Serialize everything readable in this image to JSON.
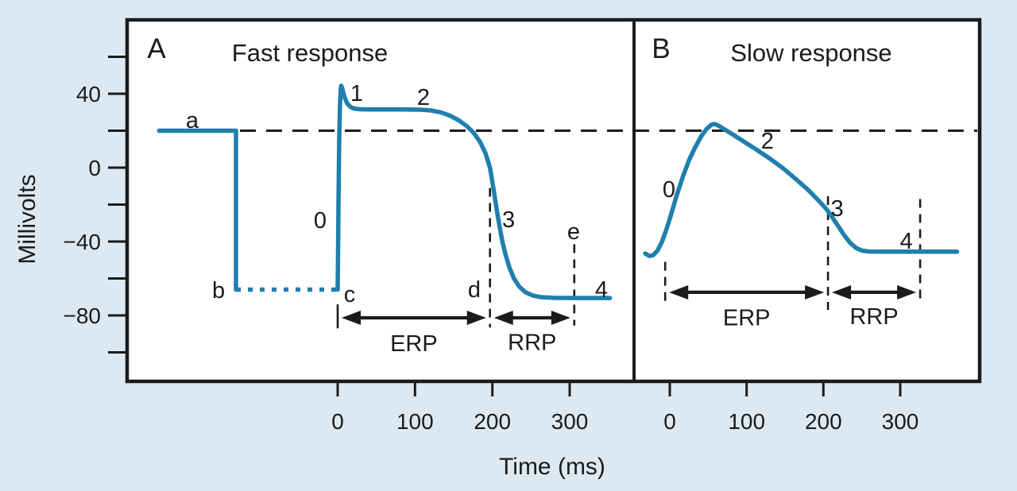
{
  "figure": {
    "colors": {
      "background": "#dde9f2",
      "plot_background": "#ffffff",
      "curve": "#1f7fad",
      "ink": "#1b1b1b"
    },
    "y_axis": {
      "label": "Millivolts",
      "labeled_ticks": [
        {
          "value": 40,
          "label": "40"
        },
        {
          "value": 0,
          "label": "0"
        },
        {
          "value": -40,
          "label": "−40"
        },
        {
          "value": -80,
          "label": "−80"
        }
      ],
      "all_tick_values": [
        60,
        40,
        20,
        0,
        -20,
        -40,
        -60,
        -80,
        -100
      ]
    },
    "x_axis": {
      "label": "Time (ms)",
      "tick_values": [
        0,
        100,
        200,
        300
      ]
    },
    "threshold_line_mv": 20
  },
  "chart_data": {
    "type": "line",
    "x_unit": "ms",
    "y_unit": "millivolts",
    "ylim": [
      -100,
      60
    ],
    "threshold_mv": 20,
    "panels": [
      {
        "id": "A",
        "panel_letter": "A",
        "title": "Fast response",
        "x_ticks": [
          0,
          100,
          200,
          300
        ],
        "segments": [
          {
            "name": "resting-trace-a-b",
            "style": "solid",
            "points": [
              [
                -231,
                20
              ],
              [
                -131.5,
                20
              ],
              [
                -131.5,
                -66
              ]
            ]
          },
          {
            "name": "impalement-dotted-b-c",
            "style": "dotted",
            "points": [
              [
                -131.5,
                -66
              ],
              [
                -1,
                -66
              ]
            ]
          },
          {
            "name": "action-potential",
            "style": "solid",
            "points": [
              [
                0,
                -66
              ],
              [
                0.5,
                -45
              ],
              [
                1,
                -20
              ],
              [
                2,
                14
              ],
              [
                3,
                34
              ],
              [
                4,
                43
              ],
              [
                4.5,
                44.3
              ],
              [
                5.5,
                43.5
              ],
              [
                7,
                41
              ],
              [
                9,
                38
              ],
              [
                12,
                35
              ],
              [
                16,
                33
              ],
              [
                21,
                32
              ],
              [
                28,
                31.6
              ],
              [
                40,
                31.5
              ],
              [
                60,
                31.5
              ],
              [
                85,
                31.5
              ],
              [
                105,
                31.4
              ],
              [
                120,
                31
              ],
              [
                133,
                30
              ],
              [
                145,
                28.2
              ],
              [
                157,
                25.5
              ],
              [
                167,
                22.5
              ],
              [
                176,
                18.8
              ],
              [
                184,
                14
              ],
              [
                191,
                8
              ],
              [
                197,
                0
              ],
              [
                201,
                -10
              ],
              [
                205,
                -21
              ],
              [
                209,
                -31
              ],
              [
                213,
                -40
              ],
              [
                217,
                -47
              ],
              [
                222,
                -54
              ],
              [
                228,
                -60
              ],
              [
                235,
                -64.5
              ],
              [
                243,
                -67.5
              ],
              [
                252,
                -69.2
              ],
              [
                263,
                -70.1
              ],
              [
                280,
                -70.5
              ],
              [
                310,
                -70.6
              ],
              [
                352,
                -70.6
              ]
            ]
          }
        ],
        "point_labels": [
          {
            "text": "a",
            "t": -188,
            "v": 25.8
          },
          {
            "text": "b",
            "t": -154,
            "v": -66.2
          },
          {
            "text": "c",
            "t": 15.4,
            "v": -68.4
          },
          {
            "text": "0",
            "t": -22.6,
            "v": -28.4
          },
          {
            "text": "1",
            "t": 24.7,
            "v": 40.4
          },
          {
            "text": "2",
            "t": 111,
            "v": 38.3
          },
          {
            "text": "3",
            "t": 221,
            "v": -28
          },
          {
            "text": "d",
            "t": 176.7,
            "v": -65.8
          },
          {
            "text": "e",
            "t": 305,
            "v": -34.4
          },
          {
            "text": "4",
            "t": 341,
            "v": -65.8
          }
        ],
        "guides": [
          {
            "t": 0,
            "v1": -74,
            "v2": -87,
            "style": "solid"
          },
          {
            "t": 197,
            "v1": -11,
            "v2": -86.5,
            "style": "dashed"
          },
          {
            "t": 306,
            "v1": -41.5,
            "v2": -85.5,
            "style": "dashed"
          }
        ],
        "intervals": [
          {
            "label": "ERP",
            "from_ms": 0,
            "to_ms": 197,
            "arrow_v": -81.3,
            "label_v": -95
          },
          {
            "label": "RRP",
            "from_ms": 197,
            "to_ms": 306,
            "arrow_v": -81.3,
            "label_v": -94.5
          }
        ]
      },
      {
        "id": "B",
        "panel_letter": "B",
        "title": "Slow response",
        "x_ticks": [
          0,
          100,
          200,
          300
        ],
        "segments": [
          {
            "name": "action-potential",
            "style": "solid",
            "points": [
              [
                -32,
                -46.5
              ],
              [
                -27,
                -47.8
              ],
              [
                -22,
                -47.5
              ],
              [
                -16,
                -45
              ],
              [
                -10,
                -40
              ],
              [
                -4,
                -33
              ],
              [
                2,
                -25
              ],
              [
                9,
                -15
              ],
              [
                17,
                -5
              ],
              [
                25,
                4
              ],
              [
                33,
                11
              ],
              [
                41,
                17
              ],
              [
                48,
                21
              ],
              [
                54,
                23.2
              ],
              [
                58,
                23.6
              ],
              [
                63,
                22.8
              ],
              [
                70,
                21
              ],
              [
                80,
                18.5
              ],
              [
                95,
                14.5
              ],
              [
                112,
                10
              ],
              [
                130,
                5
              ],
              [
                148,
                -0.5
              ],
              [
                165,
                -6.5
              ],
              [
                180,
                -12
              ],
              [
                193,
                -17.5
              ],
              [
                203,
                -22
              ],
              [
                211,
                -26.5
              ],
              [
                219,
                -31.5
              ],
              [
                227,
                -36.5
              ],
              [
                235,
                -40.8
              ],
              [
                243,
                -43.6
              ],
              [
                251,
                -45
              ],
              [
                260,
                -45.4
              ],
              [
                280,
                -45.5
              ],
              [
                374,
                -45.5
              ]
            ]
          }
        ],
        "point_labels": [
          {
            "text": "0",
            "t": -1,
            "v": -11.6
          },
          {
            "text": "2",
            "t": 127,
            "v": 14.6
          },
          {
            "text": "3",
            "t": 218,
            "v": -21.9
          },
          {
            "text": "4",
            "t": 308,
            "v": -39.6
          }
        ],
        "guides": [
          {
            "t": -6,
            "v1": -51,
            "v2": -75.5,
            "style": "dashed"
          },
          {
            "t": 206,
            "v1": -15.5,
            "v2": -77,
            "style": "dashed"
          },
          {
            "t": 326,
            "v1": -17,
            "v2": -73,
            "style": "dashed"
          }
        ],
        "intervals": [
          {
            "label": "ERP",
            "from_ms": -6,
            "to_ms": 206,
            "arrow_v": -67.5,
            "label_v": -81
          },
          {
            "label": "RRP",
            "from_ms": 206,
            "to_ms": 326,
            "arrow_v": -67.5,
            "label_v": -80.5
          }
        ]
      }
    ]
  }
}
